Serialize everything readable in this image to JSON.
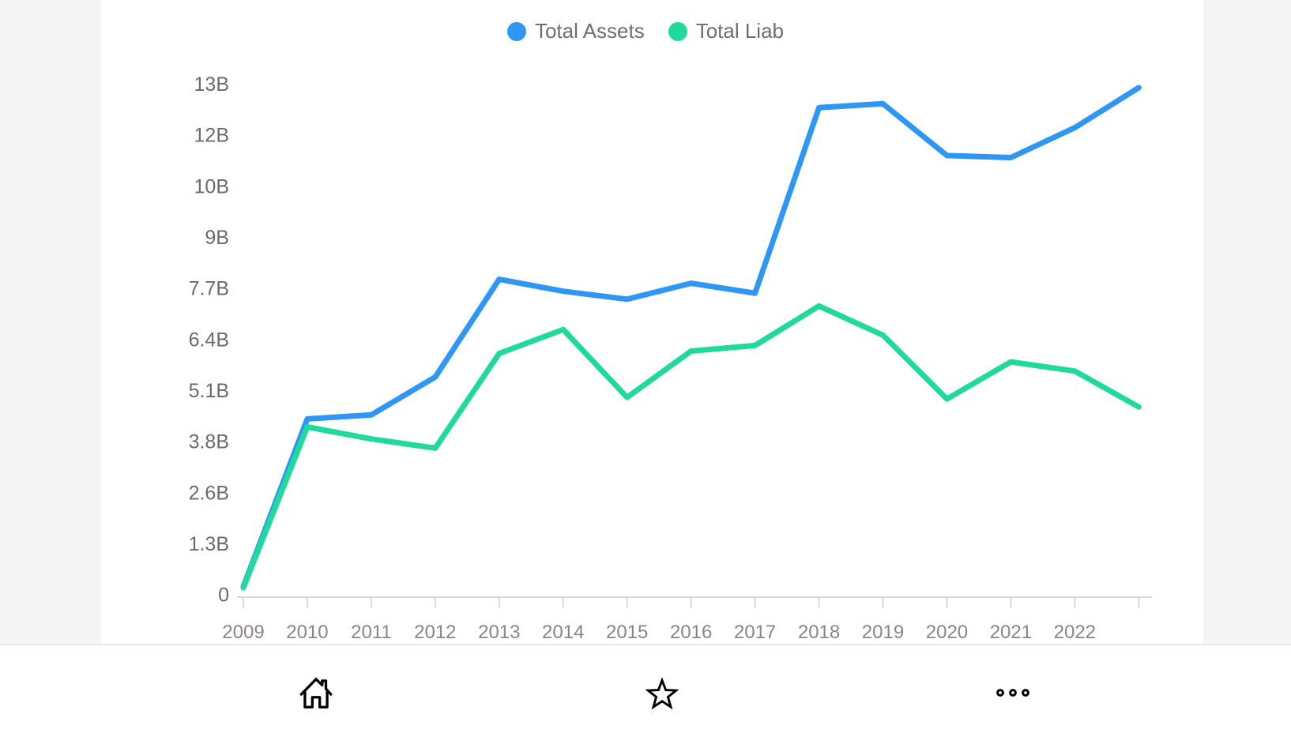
{
  "app": {
    "background_color": "#ffffff",
    "side_margin_color": "#f4f4f5",
    "divider_color": "#e8e8e8"
  },
  "legend": {
    "position": "top-center",
    "text_color": "#6e6e6e",
    "items": [
      {
        "label": "Total Assets",
        "color": "#2e96f4"
      },
      {
        "label": "Total Liab",
        "color": "#1fda9b"
      }
    ]
  },
  "chart_data": {
    "type": "line",
    "title": "",
    "xlabel": "",
    "ylabel": "",
    "legend_position": "top-center",
    "grid": "off",
    "axis_color": "#d9d9d9",
    "y_label_color": "#6f6a69",
    "x_label_color": "#8b8685",
    "x_labels": [
      "2009",
      "2010",
      "2011",
      "2012",
      "2013",
      "2014",
      "2015",
      "2016",
      "2017",
      "2018",
      "2019",
      "2020",
      "2021",
      "2022"
    ],
    "note": "series contain 15 points; the final point (after 2022) is plotted but has no axis label",
    "y_tick_labels": [
      "0",
      "1.3B",
      "2.6B",
      "3.8B",
      "5.1B",
      "6.4B",
      "7.7B",
      "9B",
      "10B",
      "12B",
      "13B"
    ],
    "y_range_billions": [
      0,
      12.8
    ],
    "series": [
      {
        "name": "Total Assets",
        "color": "#2e96f4",
        "values_billions": [
          0.2,
          4.4,
          4.5,
          5.45,
          7.9,
          7.6,
          7.4,
          7.8,
          7.55,
          12.2,
          12.3,
          11.0,
          10.95,
          11.7,
          12.7
        ]
      },
      {
        "name": "Total Liab",
        "color": "#1fda9b",
        "values_billions": [
          0.17,
          4.2,
          3.9,
          3.67,
          6.04,
          6.64,
          4.94,
          6.1,
          6.24,
          7.23,
          6.5,
          4.9,
          5.83,
          5.6,
          4.7
        ]
      }
    ]
  },
  "bottom_nav": {
    "icon_color": "#000000",
    "icons": [
      "home-icon",
      "star-icon",
      "ellipsis-icon"
    ]
  }
}
